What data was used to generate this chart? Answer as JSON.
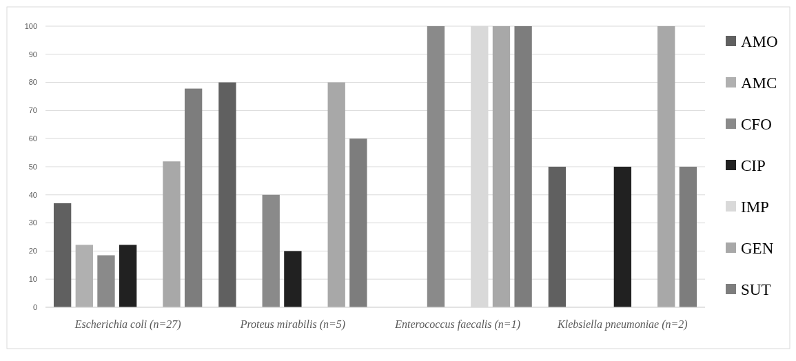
{
  "chart_data": {
    "type": "bar",
    "categories": [
      "Escherichia coli (n=27)",
      "Proteus mirabilis (n=5)",
      "Enterococcus faecalis (n=1)",
      "Klebsiella pneumoniae (n=2)"
    ],
    "series": [
      {
        "name": "AMO",
        "color": "#606060",
        "values": [
          37,
          80,
          0,
          50
        ]
      },
      {
        "name": "AMC",
        "color": "#b0b0b0",
        "values": [
          22.2,
          0,
          0,
          0
        ]
      },
      {
        "name": "CFO",
        "color": "#8a8a8a",
        "values": [
          18.5,
          40,
          100,
          0
        ]
      },
      {
        "name": "CIP",
        "color": "#212121",
        "values": [
          22.2,
          20,
          0,
          50
        ]
      },
      {
        "name": "IMP",
        "color": "#d9d9d9",
        "values": [
          0,
          0,
          100,
          0
        ]
      },
      {
        "name": "GEN",
        "color": "#a8a8a8",
        "values": [
          51.9,
          80,
          100,
          100
        ]
      },
      {
        "name": "SUT",
        "color": "#7d7d7d",
        "values": [
          77.8,
          60,
          100,
          50
        ]
      }
    ],
    "ylim": [
      0,
      100
    ],
    "yticks": [
      0,
      10,
      20,
      30,
      40,
      50,
      60,
      70,
      80,
      90,
      100
    ],
    "grid": "y",
    "legend": "right"
  }
}
